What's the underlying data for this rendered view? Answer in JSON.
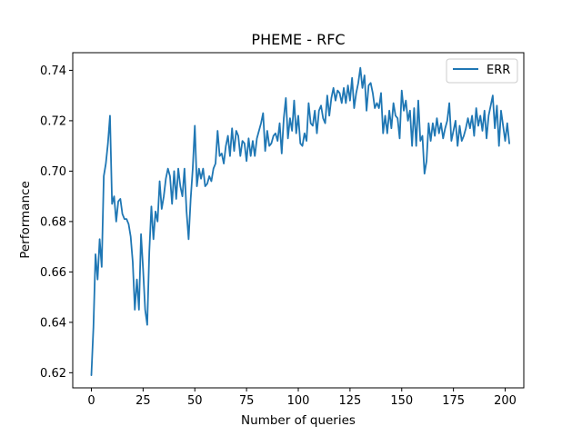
{
  "chart_data": {
    "type": "line",
    "title": "PHEME - RFC",
    "xlabel": "Number of queries",
    "ylabel": "Performance",
    "xlim": [
      -9,
      209
    ],
    "ylim": [
      0.614,
      0.747
    ],
    "xticks": [
      0,
      25,
      50,
      75,
      100,
      125,
      150,
      175,
      200
    ],
    "xtick_labels": [
      "0",
      "25",
      "50",
      "75",
      "100",
      "125",
      "150",
      "175",
      "200"
    ],
    "yticks": [
      0.62,
      0.64,
      0.66,
      0.68,
      0.7,
      0.72,
      0.74
    ],
    "ytick_labels": [
      "0.62",
      "0.64",
      "0.66",
      "0.68",
      "0.70",
      "0.72",
      "0.74"
    ],
    "grid": false,
    "legend_position": "top-right",
    "series": [
      {
        "name": "ERR",
        "color": "#1f77b4",
        "values": [
          0.619,
          0.638,
          0.667,
          0.657,
          0.673,
          0.662,
          0.698,
          0.703,
          0.711,
          0.722,
          0.687,
          0.69,
          0.68,
          0.688,
          0.689,
          0.683,
          0.681,
          0.681,
          0.679,
          0.674,
          0.664,
          0.645,
          0.657,
          0.645,
          0.675,
          0.661,
          0.645,
          0.639,
          0.668,
          0.686,
          0.673,
          0.684,
          0.68,
          0.696,
          0.685,
          0.69,
          0.697,
          0.701,
          0.698,
          0.687,
          0.7,
          0.689,
          0.701,
          0.694,
          0.69,
          0.701,
          0.684,
          0.673,
          0.689,
          0.701,
          0.718,
          0.694,
          0.701,
          0.697,
          0.701,
          0.694,
          0.695,
          0.698,
          0.696,
          0.701,
          0.703,
          0.716,
          0.706,
          0.707,
          0.703,
          0.71,
          0.714,
          0.706,
          0.717,
          0.708,
          0.716,
          0.714,
          0.706,
          0.712,
          0.711,
          0.704,
          0.713,
          0.706,
          0.712,
          0.706,
          0.713,
          0.716,
          0.719,
          0.723,
          0.708,
          0.716,
          0.71,
          0.711,
          0.714,
          0.715,
          0.712,
          0.719,
          0.707,
          0.721,
          0.729,
          0.713,
          0.721,
          0.716,
          0.728,
          0.715,
          0.722,
          0.711,
          0.71,
          0.715,
          0.712,
          0.727,
          0.719,
          0.718,
          0.724,
          0.715,
          0.724,
          0.726,
          0.721,
          0.719,
          0.73,
          0.722,
          0.729,
          0.733,
          0.728,
          0.732,
          0.731,
          0.727,
          0.733,
          0.727,
          0.734,
          0.728,
          0.737,
          0.725,
          0.731,
          0.735,
          0.741,
          0.733,
          0.738,
          0.724,
          0.734,
          0.735,
          0.731,
          0.725,
          0.727,
          0.725,
          0.731,
          0.715,
          0.722,
          0.715,
          0.724,
          0.717,
          0.727,
          0.722,
          0.721,
          0.713,
          0.732,
          0.724,
          0.728,
          0.72,
          0.724,
          0.71,
          0.725,
          0.71,
          0.728,
          0.712,
          0.714,
          0.699,
          0.704,
          0.719,
          0.712,
          0.719,
          0.714,
          0.721,
          0.715,
          0.719,
          0.713,
          0.717,
          0.72,
          0.727,
          0.712,
          0.716,
          0.72,
          0.71,
          0.718,
          0.712,
          0.714,
          0.717,
          0.721,
          0.717,
          0.722,
          0.714,
          0.725,
          0.718,
          0.722,
          0.716,
          0.724,
          0.713,
          0.722,
          0.726,
          0.73,
          0.717,
          0.726,
          0.71,
          0.724,
          0.718,
          0.712,
          0.719,
          0.711
        ]
      }
    ]
  }
}
